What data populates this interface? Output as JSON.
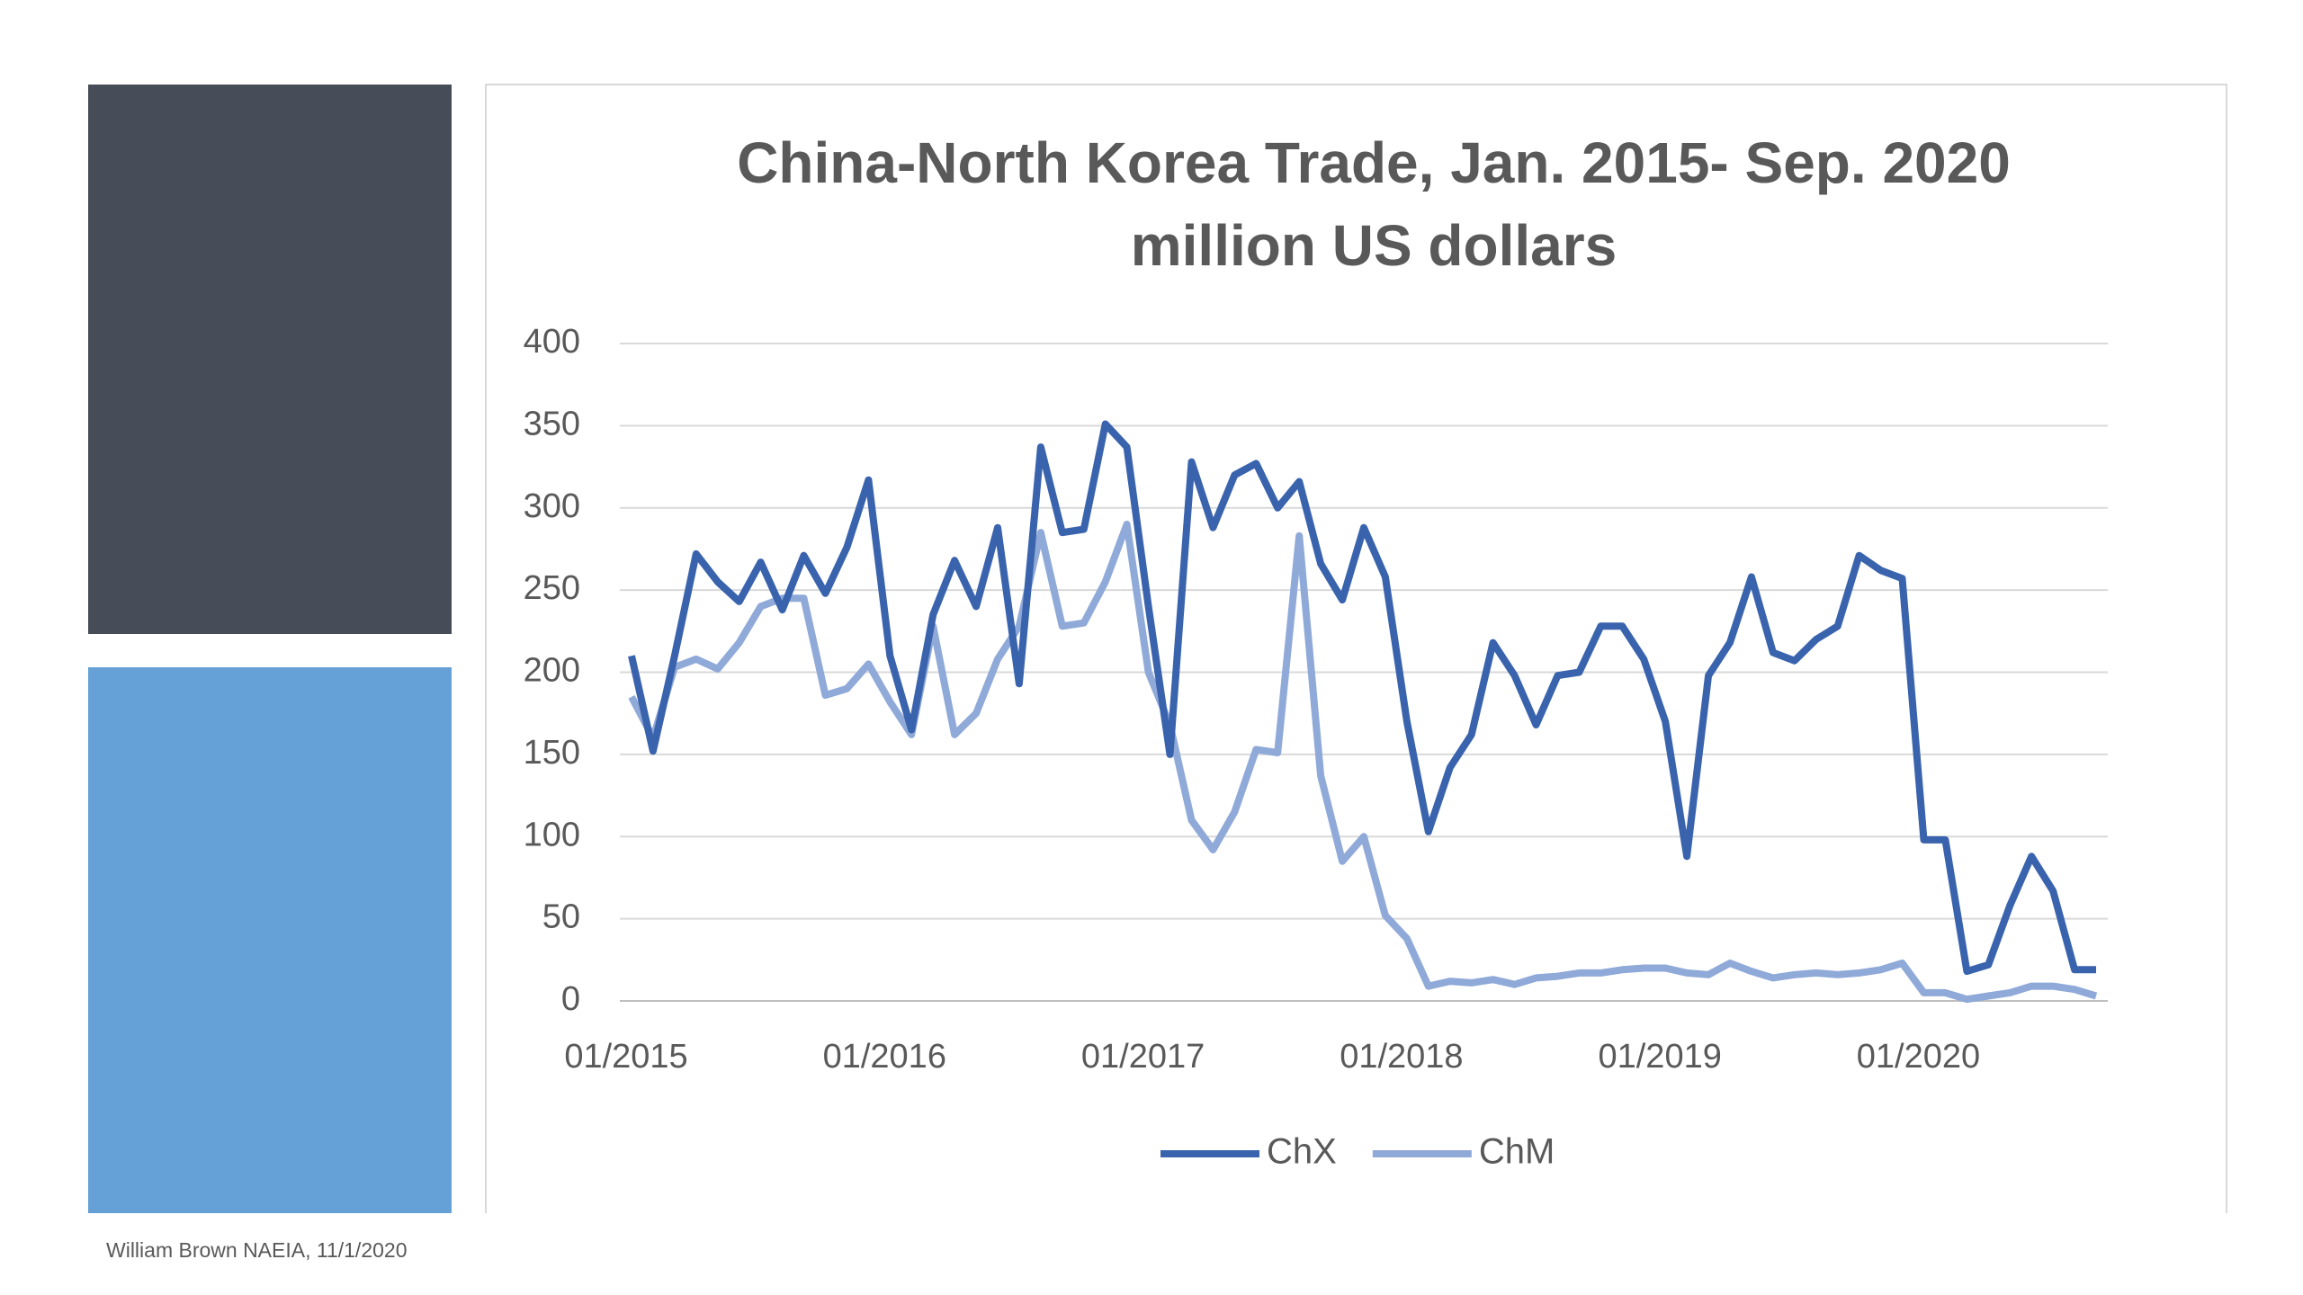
{
  "chart_data": {
    "type": "line",
    "title": "China-North Korea Trade, Jan. 2015- Sep. 2020",
    "subtitle": "million US dollars",
    "source": "William Brown NAEIA, 11/1/2020",
    "categories": [
      "01/2015",
      null,
      null,
      null,
      null,
      null,
      null,
      null,
      null,
      null,
      null,
      null,
      "01/2016",
      null,
      null,
      null,
      null,
      null,
      null,
      null,
      null,
      null,
      null,
      null,
      "01/2017",
      null,
      null,
      null,
      null,
      null,
      null,
      null,
      null,
      null,
      null,
      null,
      "01/2018",
      null,
      null,
      null,
      null,
      null,
      null,
      null,
      null,
      null,
      null,
      null,
      "01/2019",
      null,
      null,
      null,
      null,
      null,
      null,
      null,
      null,
      null,
      null,
      null,
      "01/2020",
      null,
      null,
      null,
      null,
      null,
      null,
      null,
      null
    ],
    "series": [
      {
        "name": "ChX",
        "color": "#3a63ad",
        "values": [
          210,
          152,
          210,
          272,
          255,
          243,
          267,
          238,
          271,
          248,
          276,
          317,
          210,
          165,
          235,
          268,
          240,
          288,
          193,
          337,
          285,
          287,
          351,
          337,
          240,
          150,
          328,
          288,
          320,
          327,
          300,
          316,
          266,
          244,
          288,
          258,
          170,
          103,
          142,
          162,
          218,
          198,
          168,
          198,
          200,
          228,
          228,
          208,
          170,
          88,
          198,
          218,
          258,
          212,
          207,
          220,
          228,
          271,
          262,
          257,
          98,
          98,
          18,
          22,
          58,
          88,
          67,
          19,
          19
        ]
      },
      {
        "name": "ChM",
        "color": "#8fa9d8",
        "values": [
          185,
          160,
          203,
          208,
          202,
          218,
          240,
          245,
          245,
          186,
          190,
          205,
          182,
          162,
          228,
          162,
          175,
          208,
          228,
          285,
          228,
          230,
          255,
          290,
          200,
          168,
          110,
          92,
          115,
          153,
          151,
          283,
          137,
          85,
          100,
          52,
          38,
          9,
          12,
          11,
          13,
          10,
          14,
          15,
          17,
          17,
          19,
          20,
          20,
          17,
          16,
          23,
          18,
          14,
          16,
          17,
          16,
          17,
          19,
          23,
          5,
          5,
          1,
          3,
          5,
          9,
          9,
          7,
          3
        ]
      }
    ],
    "ylim": [
      0,
      400
    ],
    "yticks": [
      0,
      50,
      100,
      150,
      200,
      250,
      300,
      350,
      400
    ],
    "grid": true,
    "legend": "bottom"
  }
}
